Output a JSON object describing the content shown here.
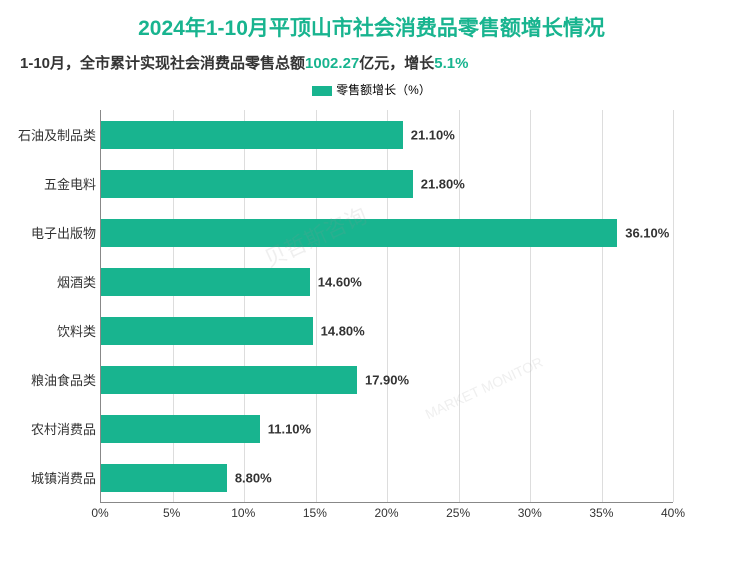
{
  "title": {
    "text": "2024年1-10月平顶山市社会消费品零售额增长情况",
    "fontsize": 21,
    "color": "#18b48f"
  },
  "subtitle": {
    "prefix": "1-10月，全市累计实现社会消费品零售总额",
    "value1": "1002.27",
    "mid": "亿元，增长",
    "value2": "5.1%",
    "fontsize": 15,
    "text_color": "#333333",
    "highlight_color": "#18b48f"
  },
  "legend": {
    "label": "零售额增长（%）",
    "marker_color": "#18b48f",
    "fontsize": 12
  },
  "chart": {
    "type": "bar-horizontal",
    "xlim": [
      0,
      40
    ],
    "xtick_step": 5,
    "xticks": [
      "0%",
      "5%",
      "10%",
      "15%",
      "20%",
      "25%",
      "30%",
      "35%",
      "40%"
    ],
    "bar_color": "#18b48f",
    "value_color": "#333333",
    "label_fontsize": 13,
    "value_fontsize": 13,
    "background_color": "#ffffff",
    "grid_color": "#dddddd",
    "axis_color": "#888888",
    "categories": [
      {
        "label": "石油及制品类",
        "value": 21.1,
        "display": "21.10%"
      },
      {
        "label": "五金电料",
        "value": 21.8,
        "display": "21.80%"
      },
      {
        "label": "电子出版物",
        "value": 36.1,
        "display": "36.10%"
      },
      {
        "label": "烟酒类",
        "value": 14.6,
        "display": "14.60%"
      },
      {
        "label": "饮料类",
        "value": 14.8,
        "display": "14.80%"
      },
      {
        "label": "粮油食品类",
        "value": 17.9,
        "display": "17.90%"
      },
      {
        "label": "农村消费品",
        "value": 11.1,
        "display": "11.10%"
      },
      {
        "label": "城镇消费品",
        "value": 8.8,
        "display": "8.80%"
      }
    ]
  },
  "watermark": {
    "text1": "贝哲斯咨询",
    "text2": "MARKET MONITOR"
  }
}
